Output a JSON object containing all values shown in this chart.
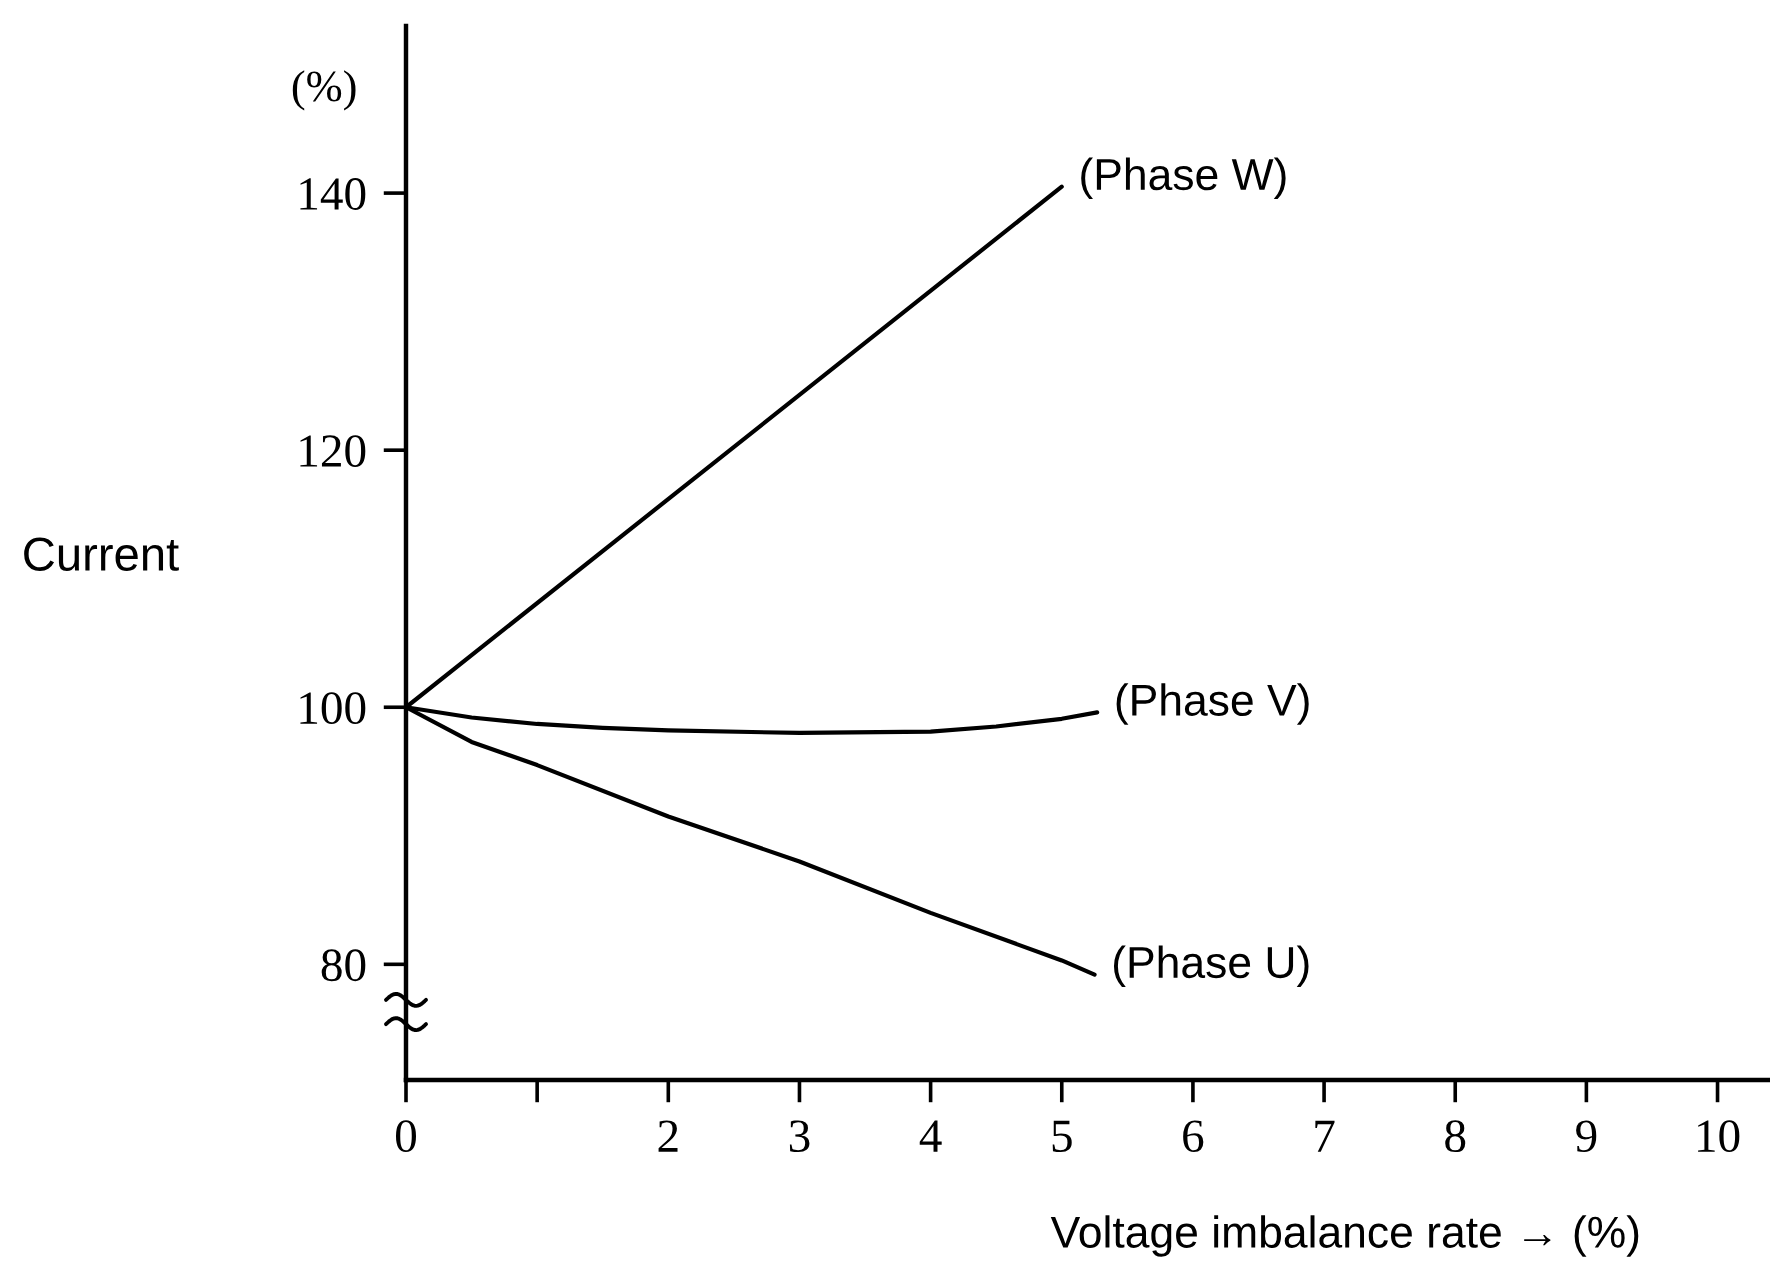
{
  "chart_data": {
    "type": "line",
    "xlabel": "Voltage imbalance rate → (%)",
    "ylabel": "Current",
    "annotations": [
      "(%)"
    ],
    "xlim": [
      0,
      10.4
    ],
    "xticks": [
      0,
      {
        "value": 1,
        "label": null
      },
      2,
      3,
      4,
      5,
      6,
      7,
      8,
      9,
      10
    ],
    "ylim": [
      71,
      153
    ],
    "yticks": [
      80,
      100,
      120,
      140
    ],
    "grid": false,
    "legend": false,
    "marker": "none",
    "line_style": "solid",
    "series": [
      {
        "name": "(Phase W)",
        "color": "#000000",
        "x": [
          0,
          5.0
        ],
        "values": [
          100,
          140.5
        ]
      },
      {
        "name": "(Phase V)",
        "color": "#000000",
        "x": [
          0,
          0.5,
          1,
          1.5,
          2,
          3,
          4,
          4.5,
          5,
          5.27
        ],
        "values": [
          100,
          99.2,
          98.7,
          98.4,
          98.2,
          98.0,
          98.1,
          98.5,
          99.1,
          99.6
        ]
      },
      {
        "name": "(Phase U)",
        "color": "#000000",
        "x": [
          0,
          0.5,
          1,
          2,
          3,
          4,
          5,
          5.25
        ],
        "values": [
          100,
          97.3,
          95.5,
          91.5,
          88,
          84,
          80.3,
          79.2
        ]
      }
    ]
  }
}
